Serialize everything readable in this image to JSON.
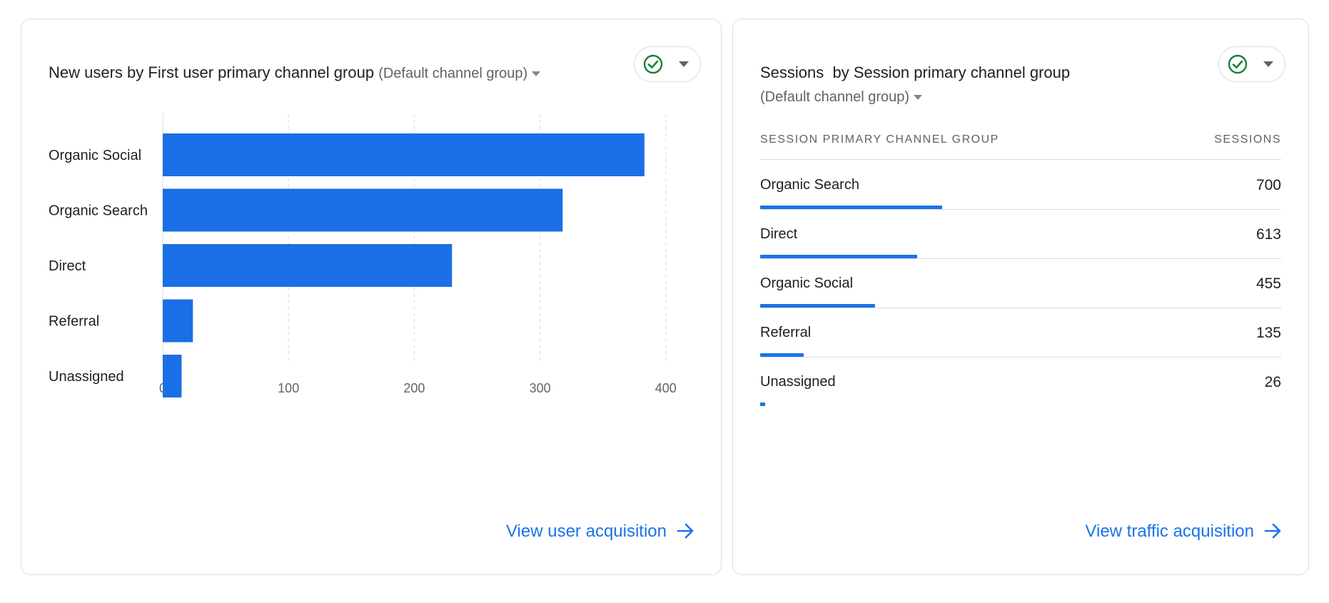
{
  "colors": {
    "accent": "#1a73e8",
    "bar": "#1a6fe6",
    "check_green": "#188038"
  },
  "left_card": {
    "title": "New users by First user primary channel group",
    "subtitle": "(Default channel group)",
    "check_icon": "check-circle-icon",
    "link": "View user acquisition",
    "chart_data": {
      "type": "bar",
      "orientation": "horizontal",
      "categories": [
        "Organic Social",
        "Organic Search",
        "Direct",
        "Referral",
        "Unassigned"
      ],
      "values": [
        383,
        318,
        230,
        24,
        15
      ],
      "xlim": [
        0,
        410
      ],
      "xticks": [
        0,
        100,
        200,
        300,
        400
      ],
      "grid": "vertical dashed"
    }
  },
  "right_card": {
    "title": "Sessions",
    "title_suffix": "by Session primary channel group",
    "subtitle": "(Default channel group)",
    "check_icon": "check-circle-icon",
    "table": {
      "headers": [
        "SESSION PRIMARY CHANNEL GROUP",
        "SESSIONS"
      ],
      "rows": [
        {
          "label": "Organic Search",
          "value": "700",
          "fraction": 0.349
        },
        {
          "label": "Direct",
          "value": "613",
          "fraction": 0.302
        },
        {
          "label": "Organic Social",
          "value": "455",
          "fraction": 0.22
        },
        {
          "label": "Referral",
          "value": "135",
          "fraction": 0.083
        },
        {
          "label": "Unassigned",
          "value": "26",
          "fraction": 0.01
        }
      ]
    },
    "link": "View traffic acquisition"
  }
}
